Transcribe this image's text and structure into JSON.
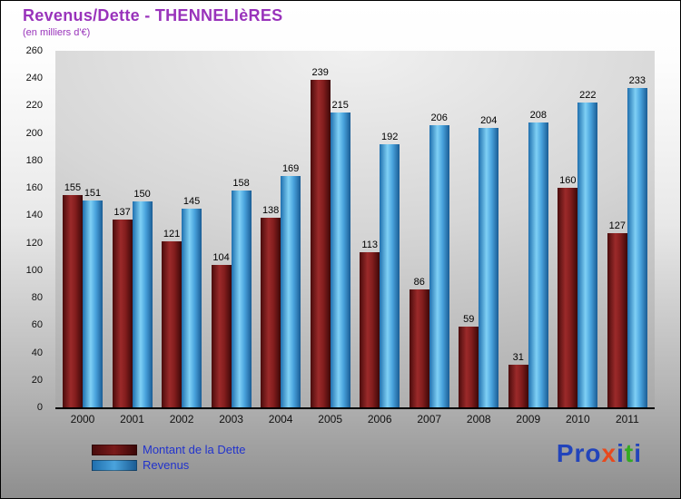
{
  "title": "Revenus/Dette - THENNELIèRES",
  "subtitle": "(en milliers d'€)",
  "chart_data": {
    "type": "bar",
    "title": "Revenus/Dette - THENNELIèRES",
    "subtitle": "(en milliers d'€)",
    "categories": [
      "2000",
      "2001",
      "2002",
      "2003",
      "2004",
      "2005",
      "2006",
      "2007",
      "2008",
      "2009",
      "2010",
      "2011"
    ],
    "series": [
      {
        "name": "Montant de la Dette",
        "color": "#7a1a1a",
        "values": [
          155,
          137,
          121,
          104,
          138,
          239,
          113,
          86,
          59,
          31,
          160,
          127
        ]
      },
      {
        "name": "Revenus",
        "color": "#4aa3dd",
        "values": [
          151,
          150,
          145,
          158,
          169,
          215,
          192,
          206,
          204,
          208,
          222,
          233
        ]
      }
    ],
    "ylim": [
      0,
      260
    ],
    "yticks": [
      0,
      20,
      40,
      60,
      80,
      100,
      120,
      140,
      160,
      180,
      200,
      220,
      240,
      260
    ],
    "grid": false,
    "legend_position": "bottom-left"
  },
  "legend": {
    "items": [
      {
        "label": "Montant de la Dette",
        "color": "#7a1a1a"
      },
      {
        "label": "Revenus",
        "color": "#4aa3dd"
      }
    ]
  },
  "logo": {
    "letters": [
      {
        "ch": "P",
        "color": "#2244bb"
      },
      {
        "ch": "r",
        "color": "#2244bb"
      },
      {
        "ch": "o",
        "color": "#2244bb"
      },
      {
        "ch": "x",
        "color": "#e8491d"
      },
      {
        "ch": "i",
        "color": "#2244bb"
      },
      {
        "ch": "t",
        "color": "#33aa22"
      },
      {
        "ch": "i",
        "color": "#2244bb"
      }
    ]
  }
}
